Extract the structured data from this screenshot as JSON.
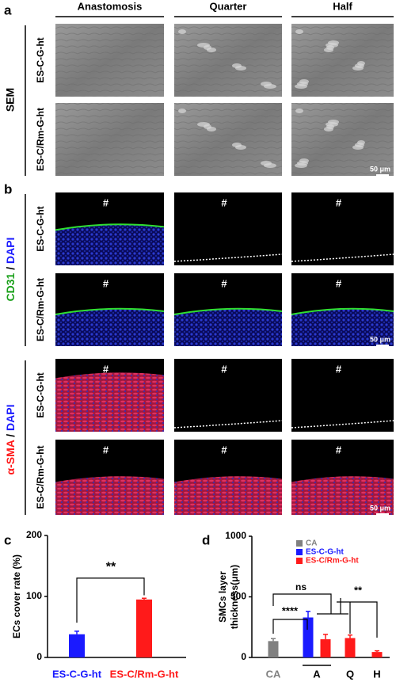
{
  "panel_labels": [
    "a",
    "b",
    "c",
    "d"
  ],
  "columns": [
    "Anastomosis",
    "Quarter",
    "Half"
  ],
  "sem": {
    "label": "SEM",
    "rows": [
      "ES-C-G-ht",
      "ES-C/Rm-G-ht"
    ]
  },
  "stain_top": {
    "parts": [
      "CD31",
      "/",
      "DAPI"
    ],
    "rows": [
      "ES-C-G-ht",
      "ES-C/Rm-G-ht"
    ]
  },
  "stain_bottom": {
    "parts": [
      "α-SMA",
      "/",
      "DAPI"
    ],
    "rows": [
      "ES-C-G-ht",
      "ES-C/Rm-G-ht"
    ]
  },
  "lumen_marker": "#",
  "scale_bar": "50 μm",
  "chart_data": [
    {
      "type": "bar",
      "ylabel": "ECs cover rate (%)",
      "categories": [
        "ES-C-G-ht",
        "ES-C/Rm-G-ht"
      ],
      "values": [
        38,
        95
      ],
      "errors": [
        5,
        2
      ],
      "colors": [
        "#1a1aff",
        "#ff1a1a"
      ],
      "ylim": [
        0,
        200
      ],
      "yticks": [
        0,
        100,
        200
      ],
      "annotations": [
        "**"
      ]
    },
    {
      "type": "bar",
      "ylabel": [
        "SMCs layer",
        "thickness(μm)"
      ],
      "categories": [
        "CA",
        "A",
        "Q",
        "H"
      ],
      "category_colors": [
        "#808080",
        "#000000",
        "#000000",
        "#000000"
      ],
      "series": [
        {
          "name": "CA",
          "color": "#808080",
          "values": [
            135,
            null,
            null,
            null
          ],
          "errors": [
            20,
            null,
            null,
            null
          ]
        },
        {
          "name": "ES-C-G-ht",
          "color": "#1a1aff",
          "values": [
            null,
            330,
            null,
            null
          ],
          "errors": [
            null,
            50,
            null,
            null
          ]
        },
        {
          "name": "ES-C/Rm-G-ht",
          "color": "#ff1a1a",
          "values": [
            null,
            150,
            160,
            45
          ],
          "errors": [
            null,
            40,
            25,
            10
          ]
        }
      ],
      "ylim": [
        0,
        1000
      ],
      "yticks": [
        0,
        500,
        1000
      ],
      "annotations": [
        "ns",
        "****",
        "**"
      ]
    }
  ]
}
